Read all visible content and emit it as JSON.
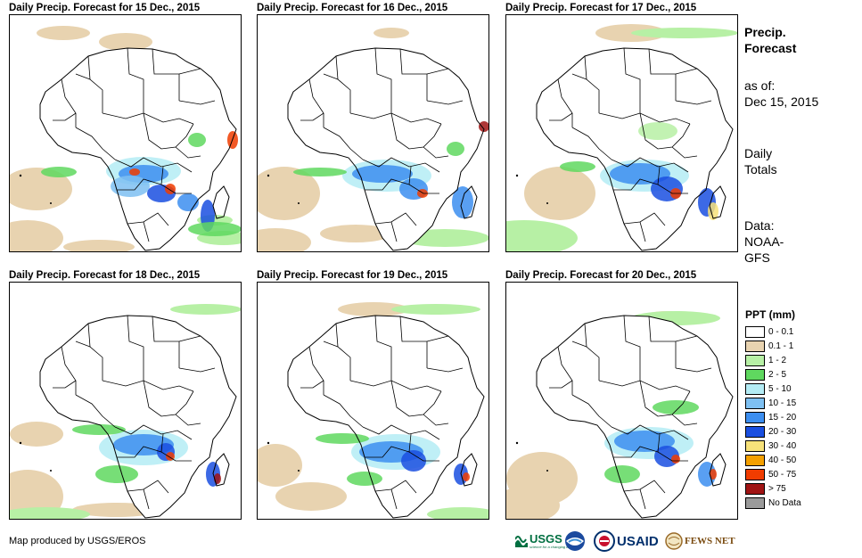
{
  "panels": [
    {
      "title": "Daily Precip. Forecast for 15 Dec., 2015"
    },
    {
      "title": "Daily Precip. Forecast for 16 Dec., 2015"
    },
    {
      "title": "Daily Precip. Forecast for 17 Dec., 2015"
    },
    {
      "title": "Daily Precip. Forecast for 18 Dec., 2015"
    },
    {
      "title": "Daily Precip. Forecast for 19 Dec., 2015"
    },
    {
      "title": "Daily Precip. Forecast for 20 Dec., 2015"
    }
  ],
  "side": {
    "heading_line1": "Precip.",
    "heading_line2": "Forecast",
    "asof_label": "as of:",
    "asof_date": "Dec 15, 2015",
    "totals_line1": "Daily",
    "totals_line2": "Totals",
    "data_line1": "Data:",
    "data_line2": "NOAA-",
    "data_line3": "GFS"
  },
  "legend": {
    "title": "PPT (mm)",
    "items": [
      {
        "label": "0 - 0.1",
        "color": "#ffffff"
      },
      {
        "label": "0.1 - 1",
        "color": "#e8d3b0"
      },
      {
        "label": "1 - 2",
        "color": "#b7f0a5"
      },
      {
        "label": "2 - 5",
        "color": "#5fd85f"
      },
      {
        "label": "5 - 10",
        "color": "#b4ecf5"
      },
      {
        "label": "10 - 15",
        "color": "#7ec0f2"
      },
      {
        "label": "15 - 20",
        "color": "#3c8ef0"
      },
      {
        "label": "20 - 30",
        "color": "#1a4fe0"
      },
      {
        "label": "30 - 40",
        "color": "#f7e27a"
      },
      {
        "label": "40 - 50",
        "color": "#f5a000"
      },
      {
        "label": "50 - 75",
        "color": "#f03c00"
      },
      {
        "label": "> 75",
        "color": "#a01414"
      },
      {
        "label": "No Data",
        "color": "#9a9a9a"
      }
    ]
  },
  "credit": "Map produced by USGS/EROS",
  "logos": {
    "usgs": "USGS",
    "usgs_tagline": "science for a changing world",
    "usaid": "USAID",
    "fews": "FEWS NET"
  }
}
